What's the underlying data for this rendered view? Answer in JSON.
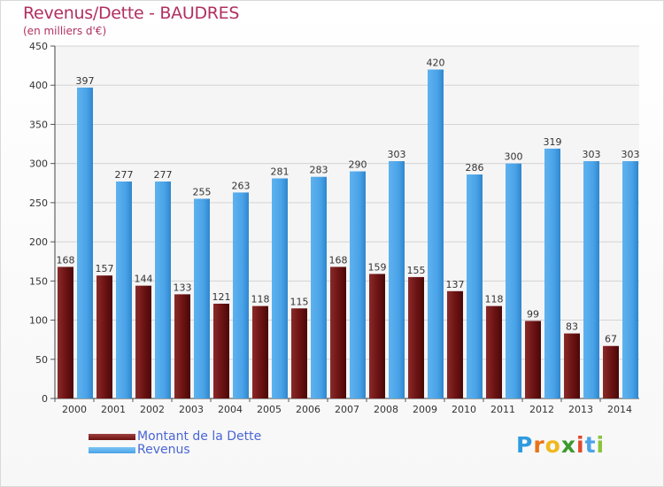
{
  "header": {
    "title": "Revenus/Dette - BAUDRES",
    "subtitle": "(en milliers d'€)"
  },
  "chart_data": {
    "type": "bar",
    "title": "Revenus/Dette - BAUDRES",
    "ylabel": "(en milliers d'€)",
    "xlabel": "",
    "ylim": [
      0,
      450
    ],
    "yticks": [
      0,
      50,
      100,
      150,
      200,
      250,
      300,
      350,
      400,
      450
    ],
    "grid": true,
    "categories": [
      "2000",
      "2001",
      "2002",
      "2003",
      "2004",
      "2005",
      "2006",
      "2007",
      "2008",
      "2009",
      "2010",
      "2011",
      "2012",
      "2013",
      "2014"
    ],
    "series": [
      {
        "name": "Montant de la Dette",
        "color": "#7a1e1e",
        "values": [
          168,
          157,
          144,
          133,
          121,
          118,
          115,
          168,
          159,
          155,
          137,
          118,
          99,
          83,
          67
        ]
      },
      {
        "name": "Revenus",
        "color": "#4aa3e8",
        "values": [
          397,
          277,
          277,
          255,
          263,
          281,
          283,
          290,
          303,
          420,
          286,
          300,
          319,
          303,
          303
        ]
      }
    ],
    "legend_position": "bottom-left"
  },
  "legend": {
    "items": [
      {
        "label": "Montant de la Dette",
        "color": "#6b1010"
      },
      {
        "label": "Revenus",
        "color": "#4aa3e8"
      }
    ]
  },
  "logo": {
    "letters": [
      "P",
      "r",
      "o",
      "x",
      "i",
      "t",
      "i"
    ],
    "colors": [
      "#2e9be0",
      "#e8731a",
      "#f0b81e",
      "#3c9a2c",
      "#e04a2a",
      "#4aa3e8",
      "#8ac43a"
    ]
  }
}
